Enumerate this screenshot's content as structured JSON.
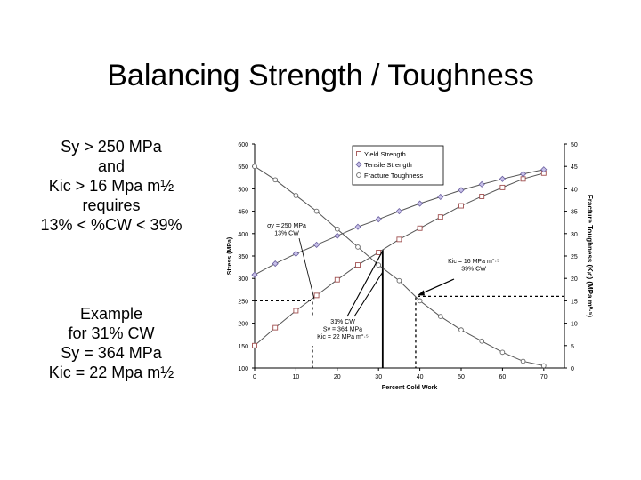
{
  "slide": {
    "title": "Balancing Strength / Toughness",
    "requirement_lines": [
      "Sy > 250 MPa",
      "and",
      "Kic > 16 Mpa m½",
      "requires",
      "13% < %CW < 39%"
    ],
    "example_lines": [
      "Example",
      "for 31% CW",
      "Sy = 364 MPa",
      "Kic = 22 Mpa m½"
    ]
  },
  "chart_data": {
    "type": "line",
    "xlabel": "Percent Cold Work",
    "ylabel": "Stress (MPa)",
    "y2label": "Fracture Toughness (Kic) (MPa m^0.5)",
    "xlim": [
      0,
      75
    ],
    "ylim": [
      100,
      600
    ],
    "y2lim": [
      0,
      50
    ],
    "xticks": [
      0,
      10,
      20,
      30,
      40,
      50,
      60,
      70
    ],
    "yticks": [
      100,
      150,
      200,
      250,
      300,
      350,
      400,
      450,
      500,
      550,
      600
    ],
    "y2ticks": [
      0,
      5,
      10,
      15,
      20,
      25,
      30,
      35,
      40,
      45,
      50
    ],
    "grid": false,
    "legend_position": "top-right",
    "series": [
      {
        "name": "Yield Strength",
        "axis": "left",
        "marker": "square",
        "x": [
          0,
          5,
          10,
          15,
          20,
          25,
          30,
          35,
          40,
          45,
          50,
          55,
          60,
          65,
          70
        ],
        "y": [
          150,
          190,
          228,
          262,
          297,
          330,
          358,
          387,
          412,
          437,
          462,
          483,
          503,
          522,
          535
        ]
      },
      {
        "name": "Tensile Strength",
        "axis": "left",
        "marker": "diamond",
        "x": [
          0,
          5,
          10,
          15,
          20,
          25,
          30,
          35,
          40,
          45,
          50,
          55,
          60,
          65,
          70
        ],
        "y": [
          308,
          333,
          355,
          375,
          395,
          415,
          432,
          450,
          467,
          482,
          497,
          510,
          522,
          533,
          543
        ]
      },
      {
        "name": "Fracture Toughness",
        "axis": "right",
        "marker": "circle",
        "x": [
          0,
          5,
          10,
          15,
          20,
          25,
          30,
          35,
          40,
          45,
          50,
          55,
          60,
          65,
          70
        ],
        "y": [
          45,
          42,
          38.5,
          35,
          31,
          27,
          23,
          19.5,
          15,
          11.5,
          8.5,
          6,
          3.5,
          1.5,
          0.5
        ]
      }
    ],
    "annotations": [
      {
        "lines": [
          "σy = 250 MPa",
          "13% CW"
        ],
        "x": 14,
        "y": 250
      },
      {
        "lines": [
          "Kic = 16 MPa m^0.5",
          "39% CW"
        ],
        "x": 39,
        "y": 16
      },
      {
        "lines": [
          "31% CW",
          "Sy = 364 MPa",
          "Kic = 22 MPa m^0.5"
        ],
        "x": 31,
        "y": 364
      }
    ]
  }
}
